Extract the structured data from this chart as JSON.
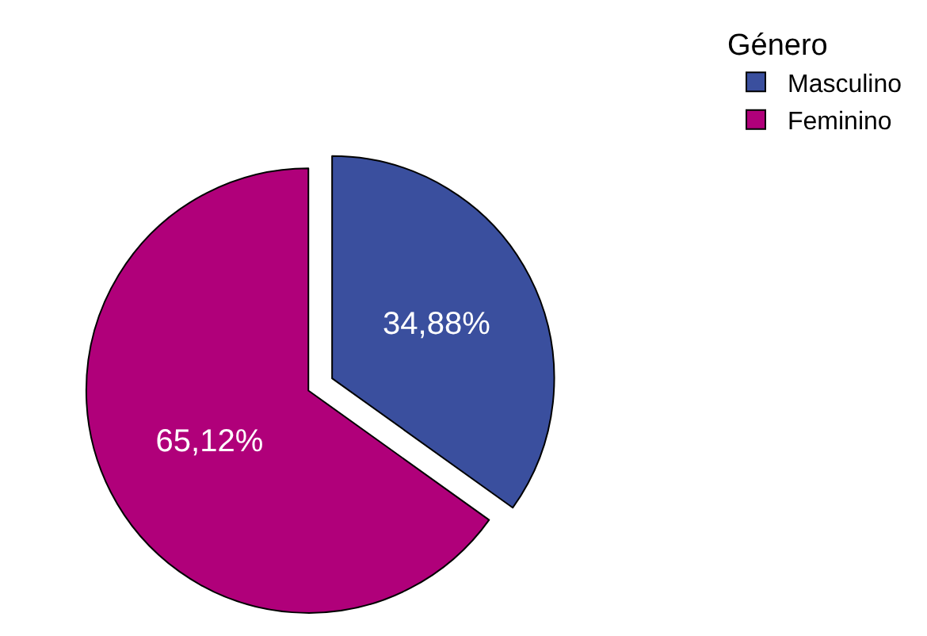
{
  "chart_data": {
    "type": "pie",
    "legend_title": "Género",
    "categories": [
      "Masculino",
      "Feminino"
    ],
    "values": [
      34.88,
      65.12
    ],
    "colors": [
      "#3a4f9e",
      "#b0007a"
    ],
    "value_labels": [
      "34,88%",
      "65,12%"
    ],
    "legend": "top right"
  }
}
